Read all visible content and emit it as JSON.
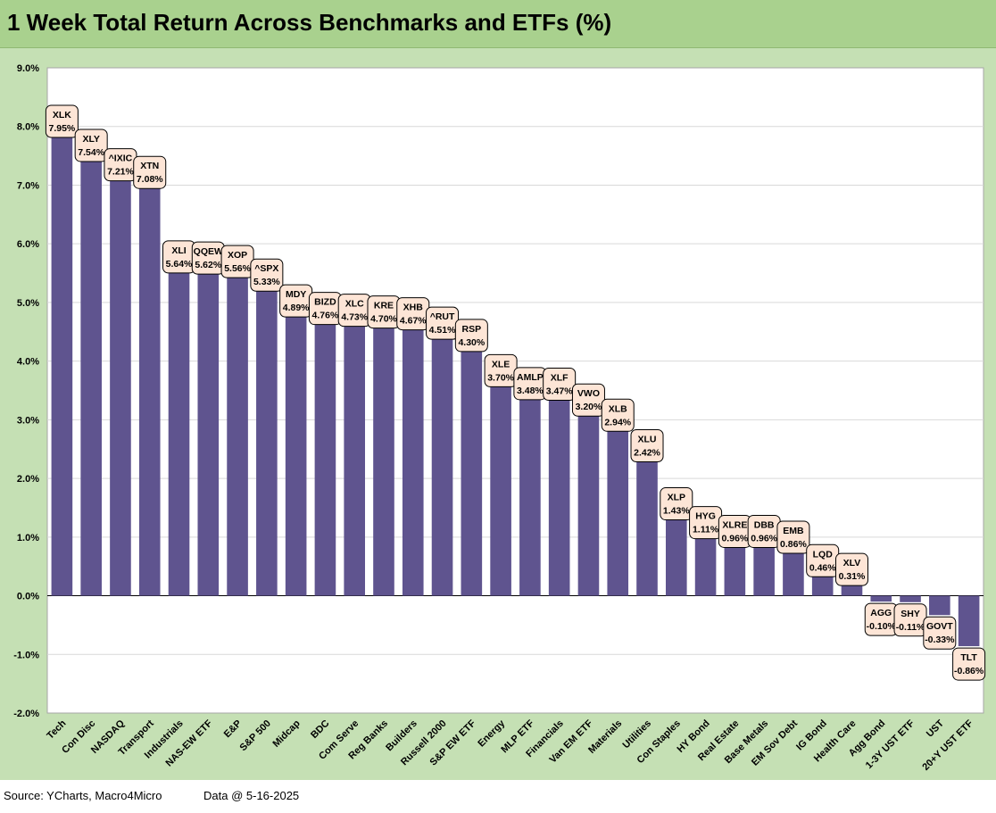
{
  "title": "1 Week Total Return Across Benchmarks and ETFs (%)",
  "footer": {
    "source": "Source: YCharts, Macro4Micro",
    "date": "Data @ 5-16-2025"
  },
  "colors": {
    "bar": "#5f548f",
    "label_bg": "#fde5d6",
    "plot_bg": "#ffffff",
    "frame_bg": "#c5e0b4",
    "title_bg": "#a9d18e",
    "grid": "#d9d9d9"
  },
  "chart_data": {
    "type": "bar",
    "title": "1 Week Total Return Across Benchmarks and ETFs (%)",
    "xlabel": "",
    "ylabel": "",
    "ylim": [
      -2.0,
      9.0
    ],
    "ytick_step": 1.0,
    "yticks": [
      "-2.0%",
      "-1.0%",
      "0.0%",
      "1.0%",
      "2.0%",
      "3.0%",
      "4.0%",
      "5.0%",
      "6.0%",
      "7.0%",
      "8.0%",
      "9.0%"
    ],
    "grid": true,
    "legend": "none",
    "categories": [
      "Tech",
      "Con Disc",
      "NASDAQ",
      "Transport",
      "Industrials",
      "NAS-EW ETF",
      "E&P",
      "S&P 500",
      "Midcap",
      "BDC",
      "Com Serve",
      "Reg Banks",
      "Builders",
      "Russell 2000",
      "S&P EW ETF",
      "Energy",
      "MLP ETF",
      "Financials",
      "Van EM ETF",
      "Materials",
      "Utilities",
      "Con Staples",
      "HY Bond",
      "Real Estate",
      "Base Metals",
      "EM Sov Debt",
      "IG Bond",
      "Health Care",
      "Agg Bond",
      "1-3Y UST ETF",
      "UST",
      "20+Y UST ETF"
    ],
    "tickers": [
      "XLK",
      "XLY",
      "^IXIC",
      "XTN",
      "XLI",
      "QQEW",
      "XOP",
      "^SPX",
      "MDY",
      "BIZD",
      "XLC",
      "KRE",
      "XHB",
      "^RUT",
      "RSP",
      "XLE",
      "AMLP",
      "XLF",
      "VWO",
      "XLB",
      "XLU",
      "XLP",
      "HYG",
      "XLRE",
      "DBB",
      "EMB",
      "LQD",
      "XLV",
      "AGG",
      "SHY",
      "GOVT",
      "TLT"
    ],
    "value_labels": [
      "7.95%",
      "7.54%",
      "7.21%",
      "7.08%",
      "5.64%",
      "5.62%",
      "5.56%",
      "5.33%",
      "4.89%",
      "4.76%",
      "4.73%",
      "4.70%",
      "4.67%",
      "4.51%",
      "4.30%",
      "3.70%",
      "3.48%",
      "3.47%",
      "3.20%",
      "2.94%",
      "2.42%",
      "1.43%",
      "1.11%",
      "0.96%",
      "0.96%",
      "0.86%",
      "0.46%",
      "0.31%",
      "-0.10%",
      "-0.11%",
      "-0.33%",
      "-0.86%"
    ],
    "values": [
      7.95,
      7.54,
      7.21,
      7.08,
      5.64,
      5.62,
      5.56,
      5.33,
      4.89,
      4.76,
      4.73,
      4.7,
      4.67,
      4.51,
      4.3,
      3.7,
      3.48,
      3.47,
      3.2,
      2.94,
      2.42,
      1.43,
      1.11,
      0.96,
      0.96,
      0.86,
      0.46,
      0.31,
      -0.1,
      -0.11,
      -0.33,
      -0.86
    ]
  }
}
